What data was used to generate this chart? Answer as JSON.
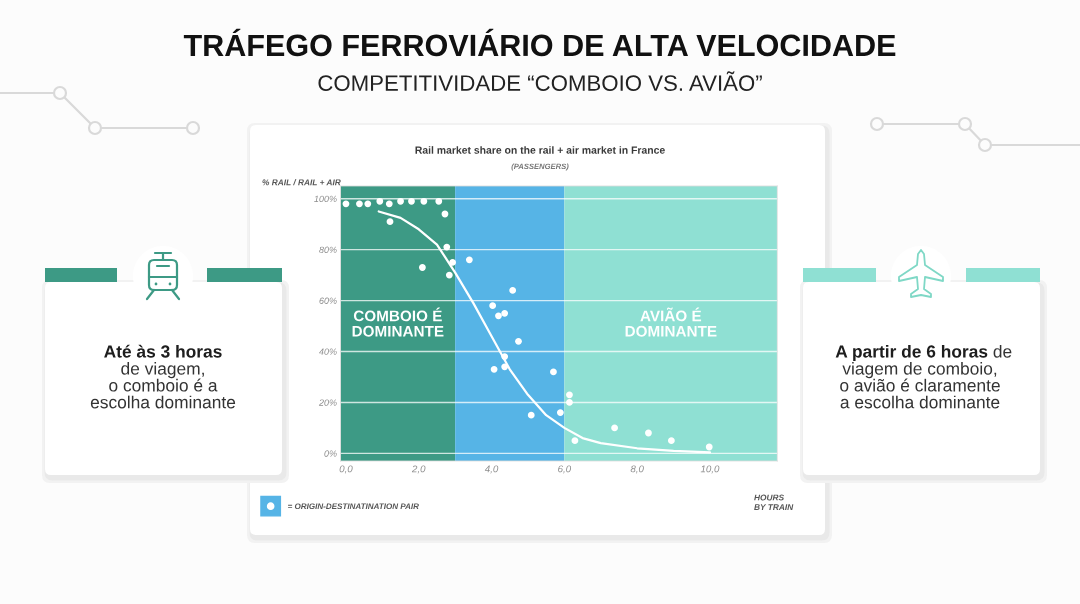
{
  "chart_data": {
    "type": "scatter",
    "title": "TRÁFEGO FERROVIÁRIO DE ALTA VELOCIDADE",
    "subtitle": "COMPETITIVIDADE “COMBOIO VS. AVIÃO”",
    "xlabel": "HOURS\nBY TRAIN",
    "ylabel": "% RAIL / RAIL + AIR",
    "annotations": [
      "Rail market share on the rail + air market in France",
      "(PASSENGERS)",
      "Até às 3 horas",
      "de viagem,\no comboio é a\nescolha dominante",
      "A partir de 6 horas",
      "de",
      "viagem de comboio,\no avião é claramente\na escolha dominante"
    ],
    "series": [
      {
        "name": "= ORIGIN-DESTINATINATION PAIR",
        "color": "#ffffff",
        "marker": "circle",
        "x": [
          0.0,
          0.37,
          0.6,
          0.93,
          1.19,
          1.5,
          1.8,
          2.14,
          2.55,
          2.72,
          1.21,
          2.77,
          2.93,
          2.1,
          2.84,
          3.39,
          4.58,
          4.03,
          4.19,
          4.36,
          4.74,
          4.36,
          4.07,
          4.36,
          5.7,
          5.09,
          5.89,
          6.14,
          6.14,
          6.29,
          7.38,
          8.31,
          8.94,
          9.98
        ],
        "values": [
          98,
          98,
          98,
          99,
          98,
          99,
          99,
          99,
          99,
          94,
          91,
          81,
          75,
          73,
          70,
          76,
          64,
          58,
          54,
          55,
          44,
          38,
          33,
          34,
          32,
          15,
          16,
          23,
          20,
          5,
          10,
          8,
          5,
          2.5
        ]
      },
      {
        "type": "line",
        "color": "#ffffff",
        "x": [
          0.9,
          1.5,
          2.0,
          2.5,
          3.0,
          3.5,
          4.0,
          4.5,
          5.0,
          5.5,
          6.0,
          6.5,
          7.0,
          8.0,
          9.0,
          10.0
        ],
        "values": [
          95,
          92.5,
          88,
          82,
          71,
          59,
          46,
          33,
          23,
          15,
          10,
          6,
          4,
          2,
          1,
          0.4
        ]
      }
    ],
    "xlim": [
      -0.15,
      11.85
    ],
    "xticks": [
      {
        "value": 0,
        "label": "0,0"
      },
      {
        "value": 2,
        "label": "2,0"
      },
      {
        "value": 4,
        "label": "4,0"
      },
      {
        "value": 6,
        "label": "6,0"
      },
      {
        "value": 8,
        "label": "8,0"
      },
      {
        "value": 10,
        "label": "10,0"
      }
    ],
    "ylim": [
      -3,
      105
    ],
    "yticks": [
      {
        "value": 0,
        "label": "0%"
      },
      {
        "value": 20,
        "label": "20%"
      },
      {
        "value": 40,
        "label": "40%"
      },
      {
        "value": 60,
        "label": "60%"
      },
      {
        "value": 80,
        "label": "80%"
      },
      {
        "value": 100,
        "label": "100%"
      }
    ],
    "bands": [
      {
        "axis": "x",
        "from": -0.15,
        "to": 3,
        "label": "COMBOIO É\nDOMINANTE",
        "color": "#3d9a85"
      },
      {
        "axis": "x",
        "from": 3,
        "to": 6,
        "color": "#56b4e6"
      },
      {
        "axis": "x",
        "from": 6,
        "to": 11.85,
        "label": "AVIÃO É\nDOMINANTE",
        "color": "#8fe0d3"
      }
    ],
    "grid": "y",
    "legend": "bottom left"
  }
}
